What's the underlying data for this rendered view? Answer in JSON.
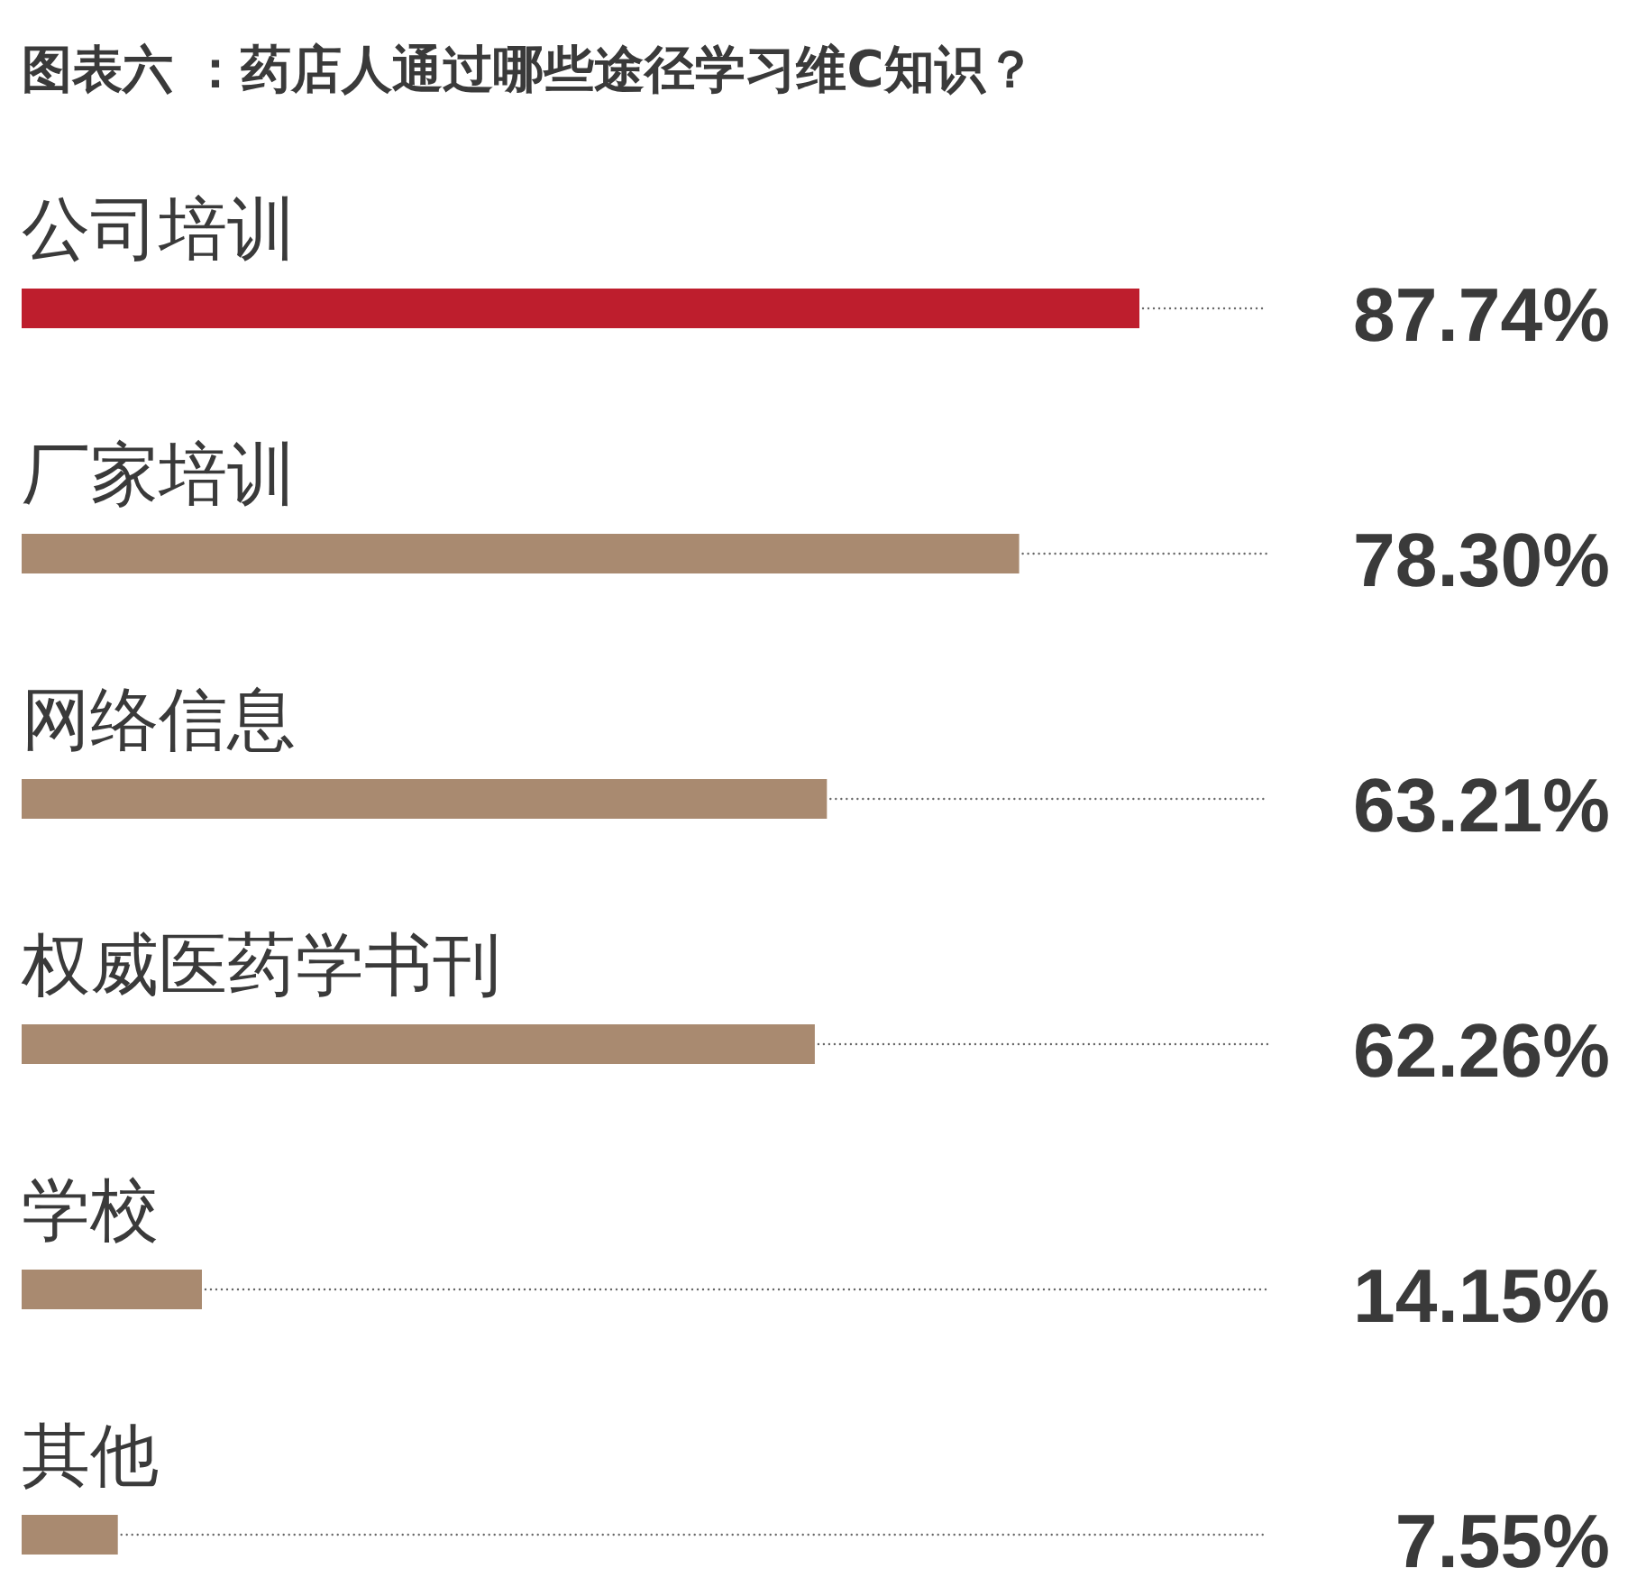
{
  "chart_data": {
    "type": "bar",
    "orientation": "horizontal",
    "title": "图表六 ：药店人通过哪些途径学习维C知识？",
    "categories": [
      "公司培训",
      "厂家培训",
      "网络信息",
      "权威医药学书刊",
      "学校",
      "其他"
    ],
    "values": [
      87.74,
      78.3,
      63.21,
      62.26,
      14.15,
      7.55
    ],
    "colors": [
      "#be1e2d",
      "#a98a70",
      "#a98a70",
      "#a98a70",
      "#a98a70",
      "#a98a70"
    ],
    "value_labels": [
      "87.74%",
      "78.30%",
      "63.21%",
      "62.26%",
      "14.15%",
      "7.55%"
    ]
  }
}
